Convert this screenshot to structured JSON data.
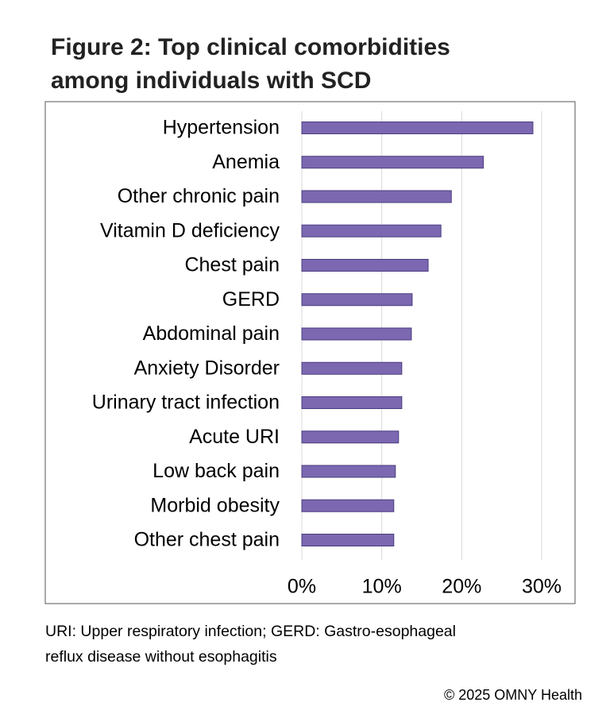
{
  "chart_data": {
    "type": "bar",
    "orientation": "horizontal",
    "title_lines": [
      "Figure 2: Top clinical comorbidities",
      "among individuals with SCD"
    ],
    "categories": [
      "Hypertension",
      "Anemia",
      "Other chronic pain",
      "Vitamin D deficiency",
      "Chest pain",
      "GERD",
      "Abdominal pain",
      "Anxiety Disorder",
      "Urinary tract infection",
      "Acute URI",
      "Low back pain",
      "Morbid obesity",
      "Other chest pain"
    ],
    "values": [
      28.9,
      22.7,
      18.7,
      17.4,
      15.8,
      13.8,
      13.7,
      12.5,
      12.5,
      12.1,
      11.7,
      11.5,
      11.5
    ],
    "color": "#7b68b0",
    "xlim": [
      0,
      30
    ],
    "xticks": [
      {
        "value": 0,
        "label": "0%"
      },
      {
        "value": 10,
        "label": "10%"
      },
      {
        "value": 20,
        "label": "20%"
      },
      {
        "value": 30,
        "label": "30%"
      }
    ],
    "grid": true,
    "note_lines": [
      "URI: Upper respiratory infection; GERD:  Gastro-esophageal",
      "reflux disease without esophagitis"
    ],
    "credit": "© 2025 OMNY Health"
  }
}
